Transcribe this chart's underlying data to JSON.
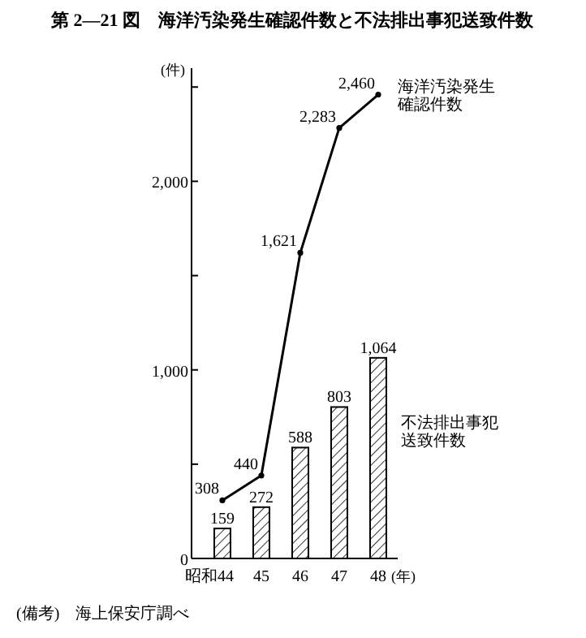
{
  "chart_data": {
    "type": "bar",
    "title": "第 2―21 図　海洋汚染発生確認件数と不法排出事犯送致件数",
    "ylabel": "(件)",
    "xlabel": "(年)",
    "categories": [
      "昭和44",
      "45",
      "46",
      "47",
      "48"
    ],
    "series": [
      {
        "name": "不法排出事犯送致件数",
        "color": "#000000",
        "values": [
          159,
          272,
          588,
          803,
          1064
        ],
        "value_labels": [
          "159",
          "272",
          "588",
          "803",
          "1,064"
        ]
      },
      {
        "name": "海洋汚染発生確認件数",
        "type": "line",
        "color": "#000000",
        "values": [
          308,
          440,
          1621,
          2283,
          2460
        ],
        "value_labels": [
          "308",
          "440",
          "1,621",
          "2,283",
          "2,460"
        ]
      }
    ],
    "ylim": [
      0,
      2600
    ],
    "yticks": [
      0,
      {
        "value": 500,
        "label": null
      },
      {
        "value": 1000,
        "label": "1,000"
      },
      {
        "value": 1500,
        "label": null
      },
      {
        "value": 2000,
        "label": "2,000"
      },
      {
        "value": 2500,
        "label": null
      }
    ],
    "marker": "circle",
    "line_style": "solid",
    "annotations": [
      "(備考)　海上保安庁調べ"
    ]
  }
}
